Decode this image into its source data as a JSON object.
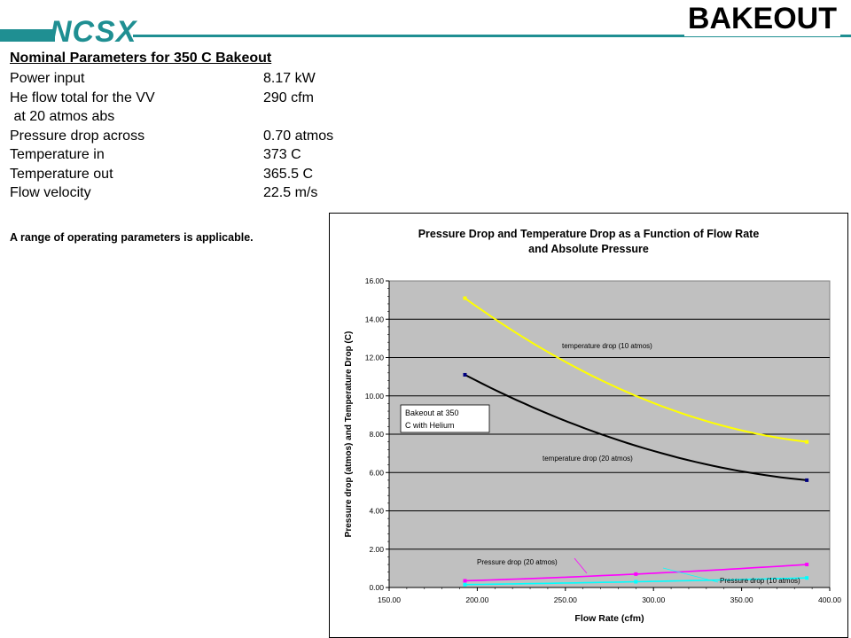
{
  "header": {
    "logo": "NCSX",
    "title": "BAKEOUT"
  },
  "params": {
    "heading": "Nominal Parameters for 350 C Bakeout",
    "rows": [
      {
        "label": "Power input",
        "value": "8.17 kW"
      },
      {
        "label": "He flow total for the VV",
        "value": "290 cfm"
      },
      {
        "label": " at 20 atmos abs",
        "value": ""
      },
      {
        "label": "Pressure drop across",
        "value": "0.70 atmos"
      },
      {
        "label": "Temperature in",
        "value": "373 C"
      },
      {
        "label": "Temperature out",
        "value": "365.5 C"
      },
      {
        "label": "Flow velocity",
        "value": "22.5 m/s"
      }
    ],
    "note": "A range of operating parameters is applicable."
  },
  "colors": {
    "brand": "#1f8f92",
    "plot_bg": "#c0c0c0"
  },
  "chart_data": {
    "type": "line",
    "title_line1": "Pressure Drop and Temperature Drop as a Function of Flow Rate",
    "title_line2": "and Absolute Pressure",
    "xlabel": "Flow Rate (cfm)",
    "ylabel": "Pressure drop (atmos) and Temperature Drop (C)",
    "xlim": [
      150,
      400
    ],
    "ylim": [
      0,
      16
    ],
    "xticks": [
      "150.00",
      "200.00",
      "250.00",
      "300.00",
      "350.00",
      "400.00"
    ],
    "yticks": [
      "0.00",
      "2.00",
      "4.00",
      "6.00",
      "8.00",
      "10.00",
      "12.00",
      "14.00",
      "16.00"
    ],
    "grid": "horizontal",
    "annotation_box": "Bakeout at 350 C with Helium",
    "series": [
      {
        "name": "temperature drop (10 atmos)",
        "color": "#ffff00",
        "x": [
          193,
          290,
          387
        ],
        "y": [
          15.1,
          10.0,
          7.6
        ]
      },
      {
        "name": "temperature drop (20 atmos)",
        "color": "#000000",
        "x": [
          193,
          290,
          387
        ],
        "y": [
          11.1,
          7.4,
          5.6
        ]
      },
      {
        "name": "Pressure drop (20 atmos)",
        "color": "#ff00ff",
        "x": [
          193,
          290,
          387
        ],
        "y": [
          0.35,
          0.7,
          1.2
        ]
      },
      {
        "name": "Pressure drop (10 atmos)",
        "color": "#00ffff",
        "x": [
          193,
          290,
          387
        ],
        "y": [
          0.15,
          0.3,
          0.5
        ]
      }
    ]
  }
}
